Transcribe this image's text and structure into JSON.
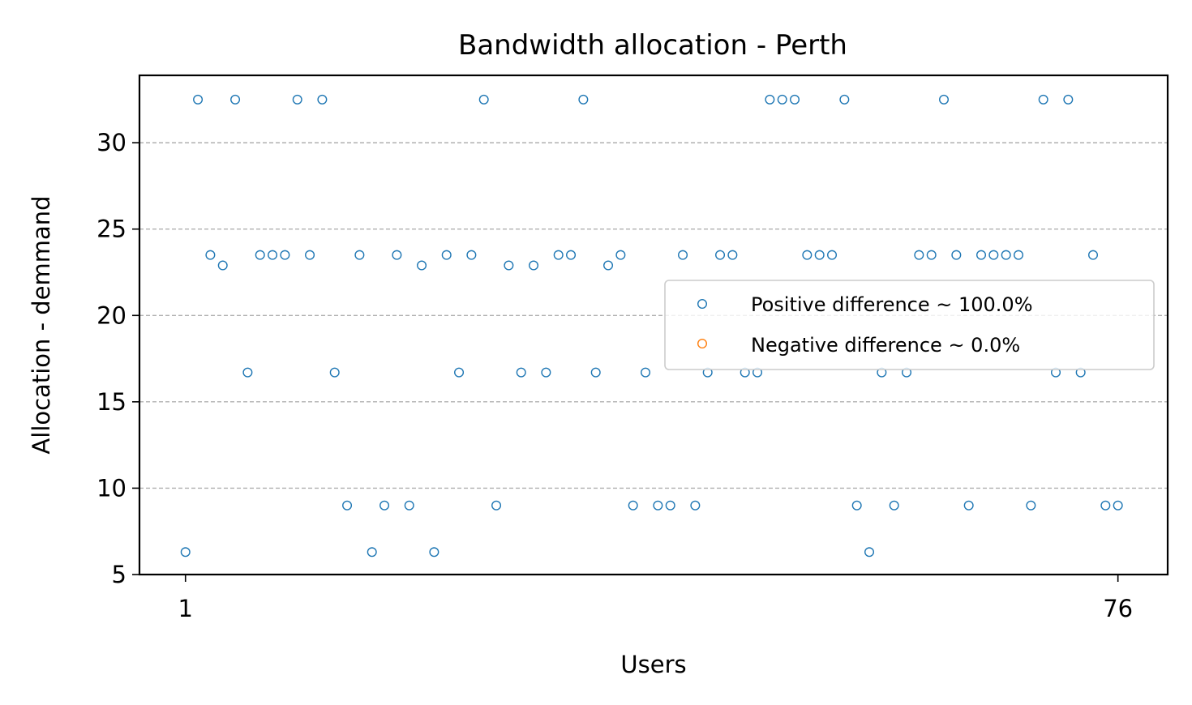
{
  "chart_data": {
    "type": "scatter",
    "title": "Bandwidth allocation - Perth",
    "xlabel": "Users",
    "ylabel": "Allocation - demmand",
    "xlim": [
      -2.7,
      80.0
    ],
    "ylim": [
      5,
      33.9
    ],
    "xticks": [
      1,
      76
    ],
    "yticks": [
      5,
      10,
      15,
      20,
      25,
      30
    ],
    "grid": "y-dashed",
    "legend_position": "center-right",
    "series": [
      {
        "name": "Positive difference ~ 100.0%",
        "color": "#1f77b4",
        "x": [
          1,
          2,
          3,
          4,
          5,
          6,
          7,
          8,
          9,
          10,
          11,
          12,
          13,
          14,
          15,
          16,
          17,
          18,
          19,
          20,
          21,
          22,
          23,
          24,
          25,
          26,
          27,
          28,
          29,
          30,
          31,
          32,
          33,
          34,
          35,
          36,
          37,
          38,
          39,
          40,
          41,
          42,
          43,
          44,
          45,
          46,
          47,
          48,
          49,
          50,
          51,
          52,
          53,
          54,
          55,
          56,
          57,
          58,
          59,
          60,
          61,
          62,
          63,
          64,
          65,
          66,
          67,
          68,
          69,
          70,
          71,
          72,
          73,
          74,
          75,
          76
        ],
        "y": [
          6.3,
          32.5,
          23.5,
          22.9,
          32.5,
          16.7,
          23.5,
          23.5,
          23.5,
          32.5,
          23.5,
          32.5,
          16.7,
          9.0,
          23.5,
          6.3,
          9.0,
          23.5,
          9.0,
          22.9,
          6.3,
          23.5,
          16.7,
          23.5,
          32.5,
          9.0,
          22.9,
          16.7,
          22.9,
          16.7,
          23.5,
          23.5,
          32.5,
          16.7,
          22.9,
          23.5,
          9.0,
          16.7,
          9.0,
          9.0,
          23.5,
          9.0,
          16.7,
          23.5,
          23.5,
          16.7,
          16.7,
          32.5,
          32.5,
          32.5,
          23.5,
          23.5,
          23.5,
          32.5,
          9.0,
          6.3,
          16.7,
          9.0,
          16.7,
          23.5,
          23.5,
          32.5,
          23.5,
          9.0,
          23.5,
          23.5,
          23.5,
          23.5,
          9.0,
          32.5,
          16.7,
          32.5,
          16.7,
          23.5,
          9.0,
          9.0
        ]
      },
      {
        "name": "Negative difference ~ 0.0%",
        "color": "#ff7f0e",
        "x": [],
        "y": []
      }
    ]
  }
}
